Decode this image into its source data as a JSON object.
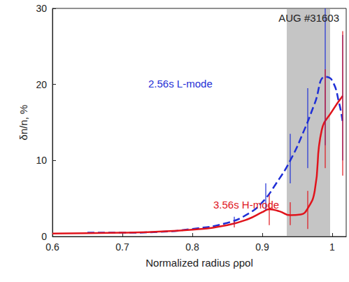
{
  "chart_data": {
    "type": "line",
    "x_label": "Normalized radius ρpol",
    "y_label": "δn/n, %",
    "xlim": [
      0.6,
      1.02
    ],
    "xticks": [
      0.6,
      0.7,
      0.8,
      0.9,
      1
    ],
    "ylim": [
      0,
      30
    ],
    "yticks": [
      0,
      10,
      20,
      30
    ],
    "grid": false,
    "annotations": [
      "AUG #31603"
    ],
    "shaded_region": [
      0.935,
      0.997
    ],
    "series": [
      {
        "name": "2.56s L-mode",
        "color": "#1f2fd6",
        "line_style": "dashed",
        "x": [
          0.65,
          0.7,
          0.75,
          0.8,
          0.85,
          0.88,
          0.9,
          0.92,
          0.94,
          0.96,
          0.975,
          0.99,
          1.0,
          1.01,
          1.015
        ],
        "values": [
          0.5,
          0.5,
          0.6,
          1.0,
          1.8,
          3.0,
          4.5,
          7.0,
          10.0,
          14.0,
          17.5,
          21.0,
          20.5,
          17.5,
          15.0
        ],
        "error_bars": [
          {
            "x": 0.86,
            "low": 1.6,
            "high": 2.6
          },
          {
            "x": 0.905,
            "low": 3.5,
            "high": 7.0
          },
          {
            "x": 0.94,
            "low": 7.0,
            "high": 13.5
          },
          {
            "x": 0.965,
            "low": 9.0,
            "high": 19.5
          },
          {
            "x": 0.99,
            "low": 12.0,
            "high": 30.0
          },
          {
            "x": 1.015,
            "low": 10.0,
            "high": 26.5
          }
        ]
      },
      {
        "name": "3.56s H-mode",
        "color": "#e0141c",
        "line_style": "solid",
        "x": [
          0.6,
          0.7,
          0.8,
          0.85,
          0.88,
          0.9,
          0.91,
          0.925,
          0.94,
          0.955,
          0.965,
          0.975,
          0.985,
          1.0,
          1.015
        ],
        "values": [
          0.4,
          0.5,
          0.9,
          1.5,
          2.3,
          3.2,
          3.6,
          3.3,
          2.8,
          2.9,
          3.7,
          6.0,
          14.0,
          16.5,
          18.5
        ],
        "error_bars": [
          {
            "x": 0.86,
            "low": 1.2,
            "high": 2.0
          },
          {
            "x": 0.91,
            "low": 1.5,
            "high": 5.5
          },
          {
            "x": 0.94,
            "low": 1.5,
            "high": 4.5
          },
          {
            "x": 0.965,
            "low": 1.0,
            "high": 6.0
          },
          {
            "x": 0.99,
            "low": 9.0,
            "high": 22.0
          },
          {
            "x": 1.015,
            "low": 8.0,
            "high": 27.0
          }
        ]
      }
    ]
  }
}
